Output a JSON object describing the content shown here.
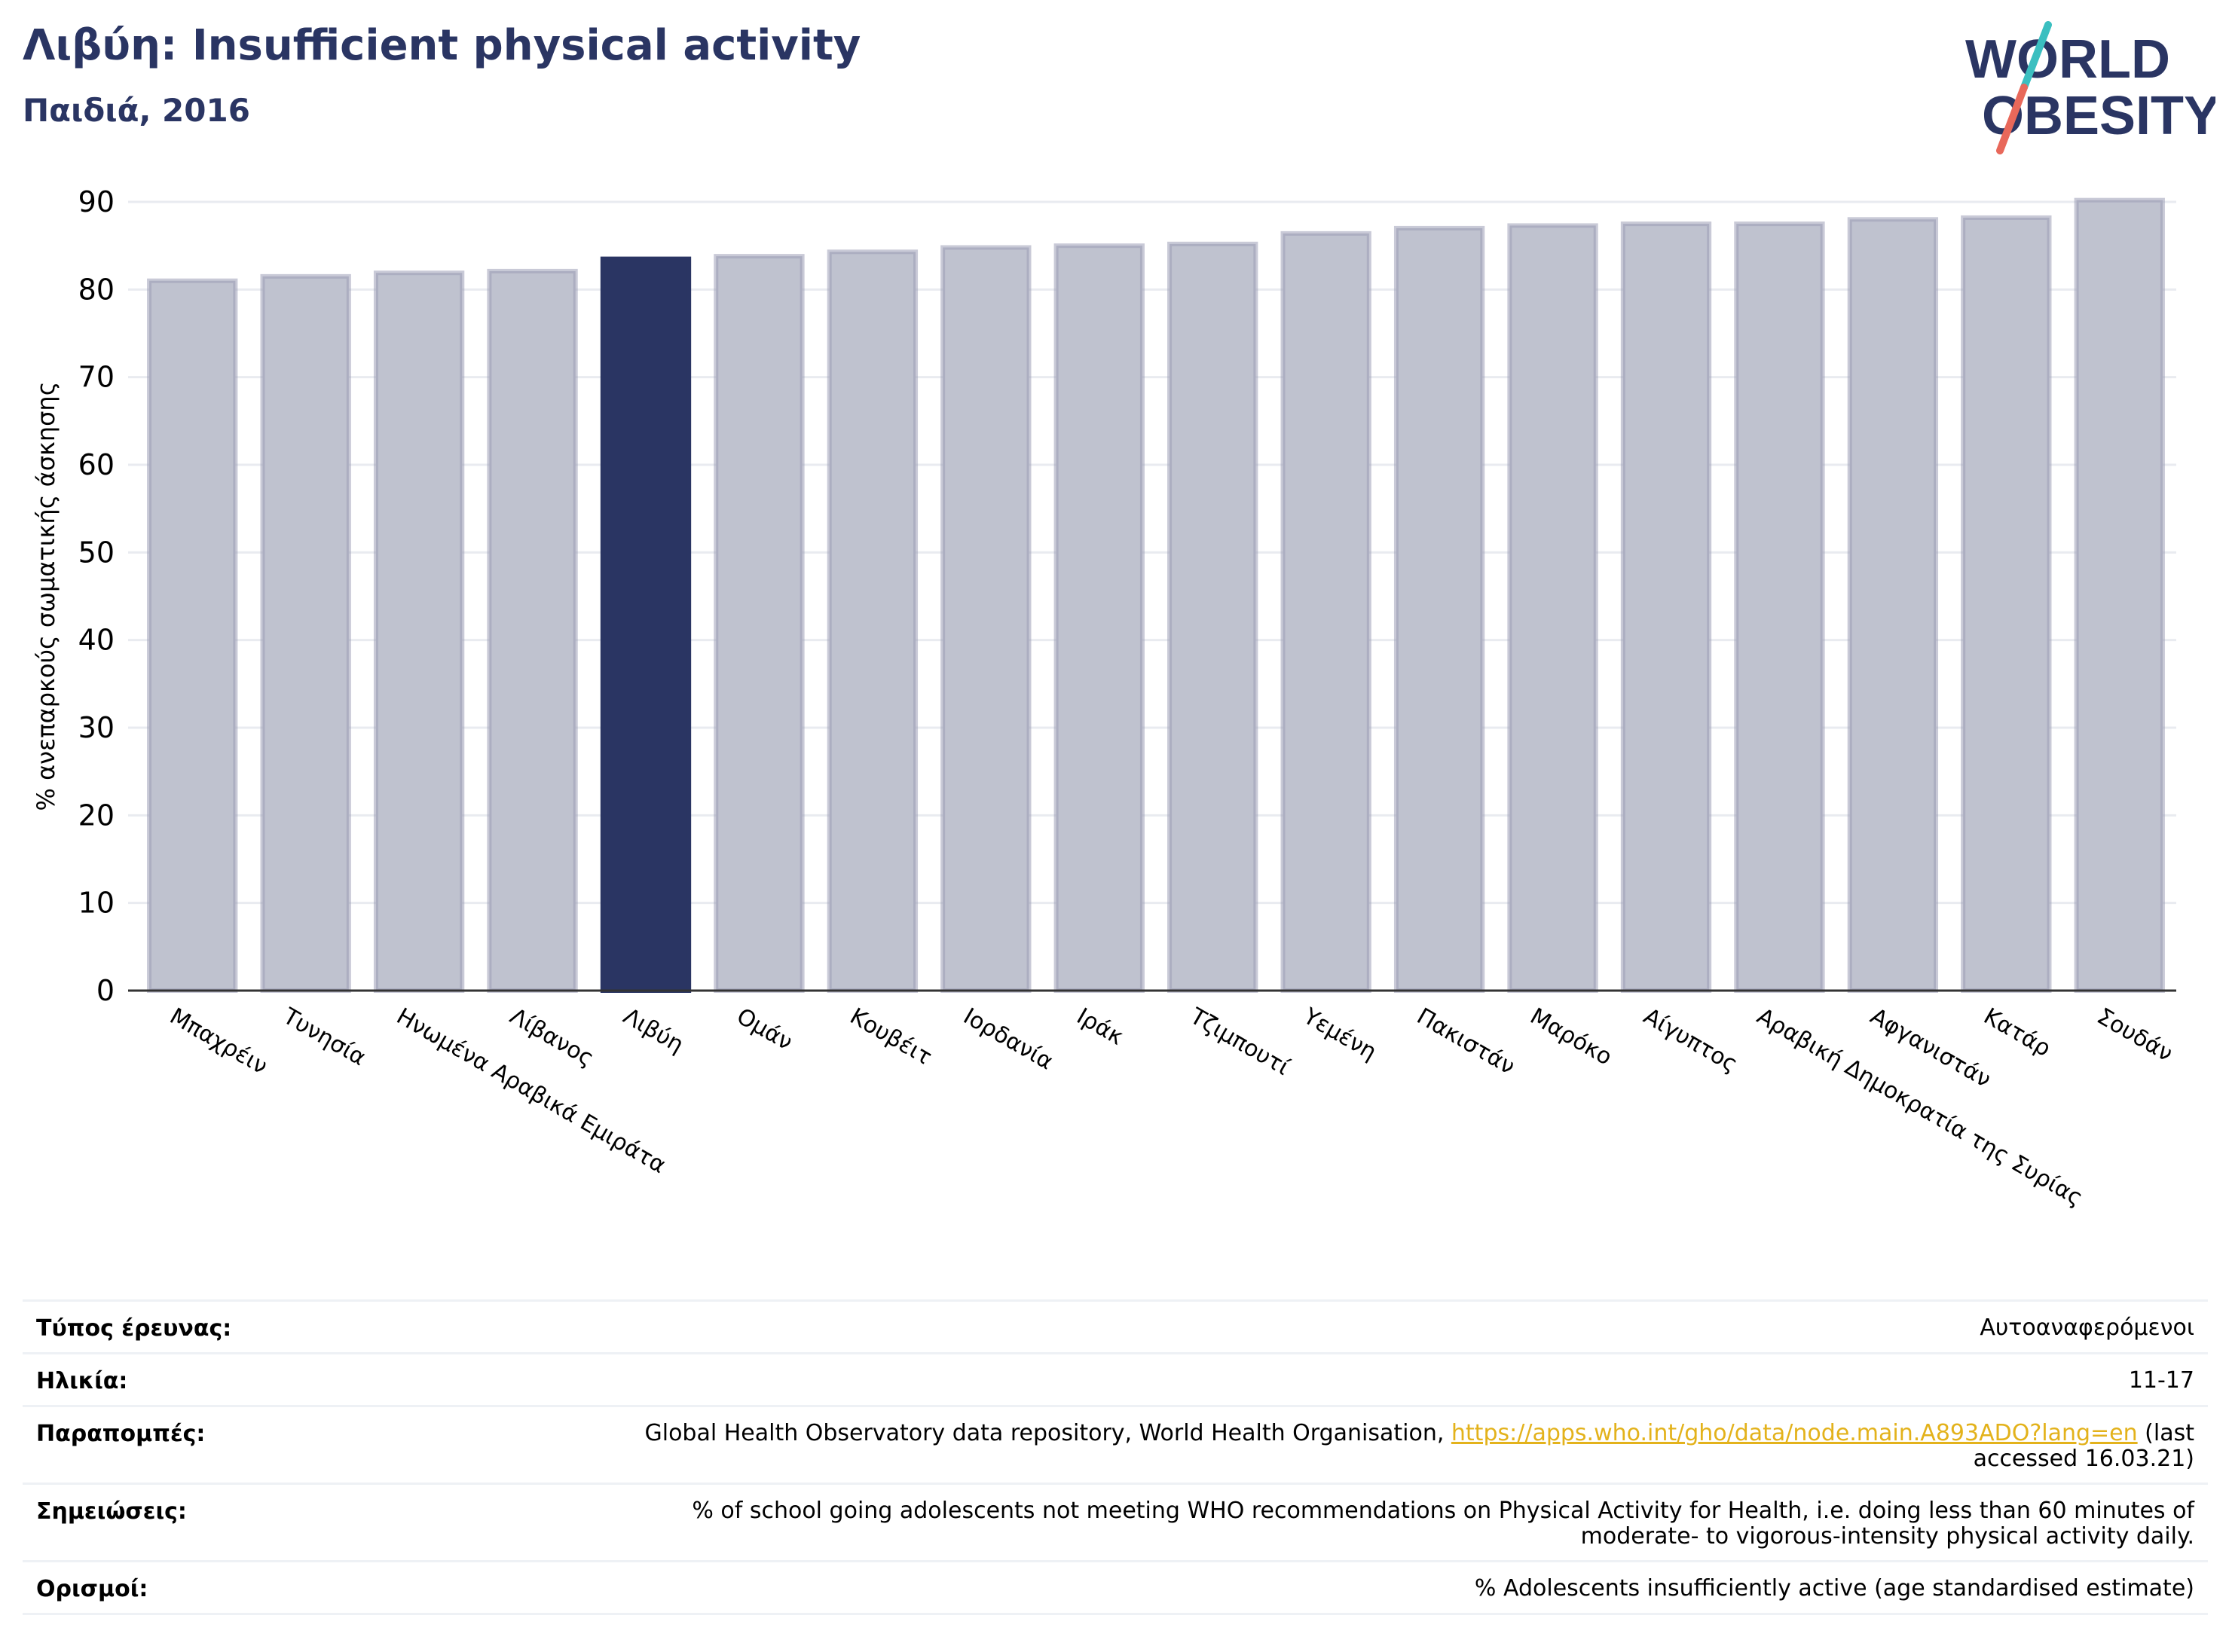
{
  "header": {
    "title": "Λιβύη: Insufficient physical activity",
    "subtitle": "Παιδιά, 2016",
    "logo_line1": "WORLD",
    "logo_line2": "OBESITY"
  },
  "colors": {
    "brand": "#2a3563",
    "bar": "#bfc2cf",
    "bar_border": "#9c9fb7",
    "highlight": "#2a3563",
    "link": "#e3b21b",
    "logo_teal": "#3bbfc0",
    "logo_coral": "#e8685a"
  },
  "chart_data": {
    "type": "bar",
    "title": "Λιβύη: Insufficient physical activity",
    "subtitle": "Παιδιά, 2016",
    "xlabel": "",
    "ylabel": "% ανεπαρκούς σωματικής άσκησης",
    "ylim": [
      0,
      90
    ],
    "yticks": [
      0,
      10,
      20,
      30,
      40,
      50,
      60,
      70,
      80,
      90
    ],
    "grid": true,
    "highlight": "Λιβύη",
    "categories": [
      "Μπαχρέιν",
      "Τυνησία",
      "Ηνωμένα Αραβικά Εμιράτα",
      "Λίβανος",
      "Λιβύη",
      "Ομάν",
      "Κουβέιτ",
      "Ιορδανία",
      "Ιράκ",
      "Τζιμπουτί",
      "Υεμένη",
      "Πακιστάν",
      "Μαρόκο",
      "Αίγυπτος",
      "Αραβική Δημοκρατία της Συρίας",
      "Αφγανιστάν",
      "Κατάρ",
      "Σουδάν"
    ],
    "values": [
      81.0,
      81.5,
      81.9,
      82.1,
      83.5,
      83.8,
      84.3,
      84.8,
      85.0,
      85.2,
      86.4,
      87.0,
      87.3,
      87.5,
      87.5,
      88.0,
      88.2,
      90.2
    ]
  },
  "meta": [
    {
      "label": "Τύπος έρευνας:",
      "value": "Αυτοαναφερόμενοι"
    },
    {
      "label": "Ηλικία:",
      "value": "11-17"
    },
    {
      "label": "Παραπομπές:",
      "value": "Global Health Observatory data repository, World Health Organisation, ",
      "link": "https://apps.who.int/gho/data/node.main.A893ADO?lang=en",
      "suffix": " (last accessed 16.03.21)"
    },
    {
      "label": "Σημειώσεις:",
      "value": "% of school going adolescents not meeting WHO recommendations on Physical Activity for Health, i.e. doing less than 60 minutes of moderate- to vigorous-intensity physical activity daily."
    },
    {
      "label": "Ορισμοί:",
      "value": "% Adolescents insufficiently active (age standardised estimate)"
    }
  ]
}
